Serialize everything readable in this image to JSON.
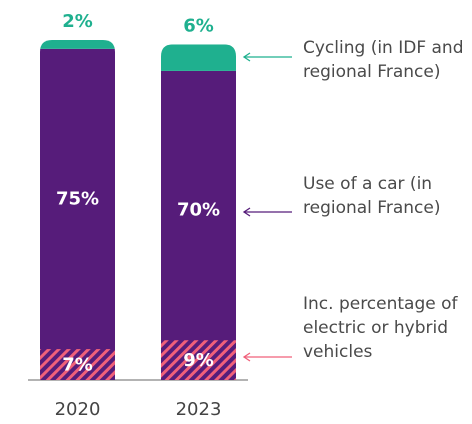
{
  "chart_data": {
    "type": "stacked-bar",
    "categories": [
      "2020",
      "2023"
    ],
    "series": [
      {
        "name": "Use of a car (in regional France)",
        "color": "#561c7a",
        "values": [
          75,
          70
        ],
        "value_labels": [
          "75%",
          "70%"
        ]
      },
      {
        "name": "Cycling (in IDF and regional France)",
        "color": "#1fb08f",
        "values": [
          2,
          6
        ],
        "value_labels": [
          "2%",
          "6%"
        ]
      }
    ],
    "included": {
      "name": "Inc. percentage of electric or hybrid vehicles",
      "color": "#f0607a",
      "values": [
        7,
        9
      ],
      "value_labels": [
        "7%",
        "9%"
      ]
    },
    "ylim": [
      0,
      77
    ]
  }
}
